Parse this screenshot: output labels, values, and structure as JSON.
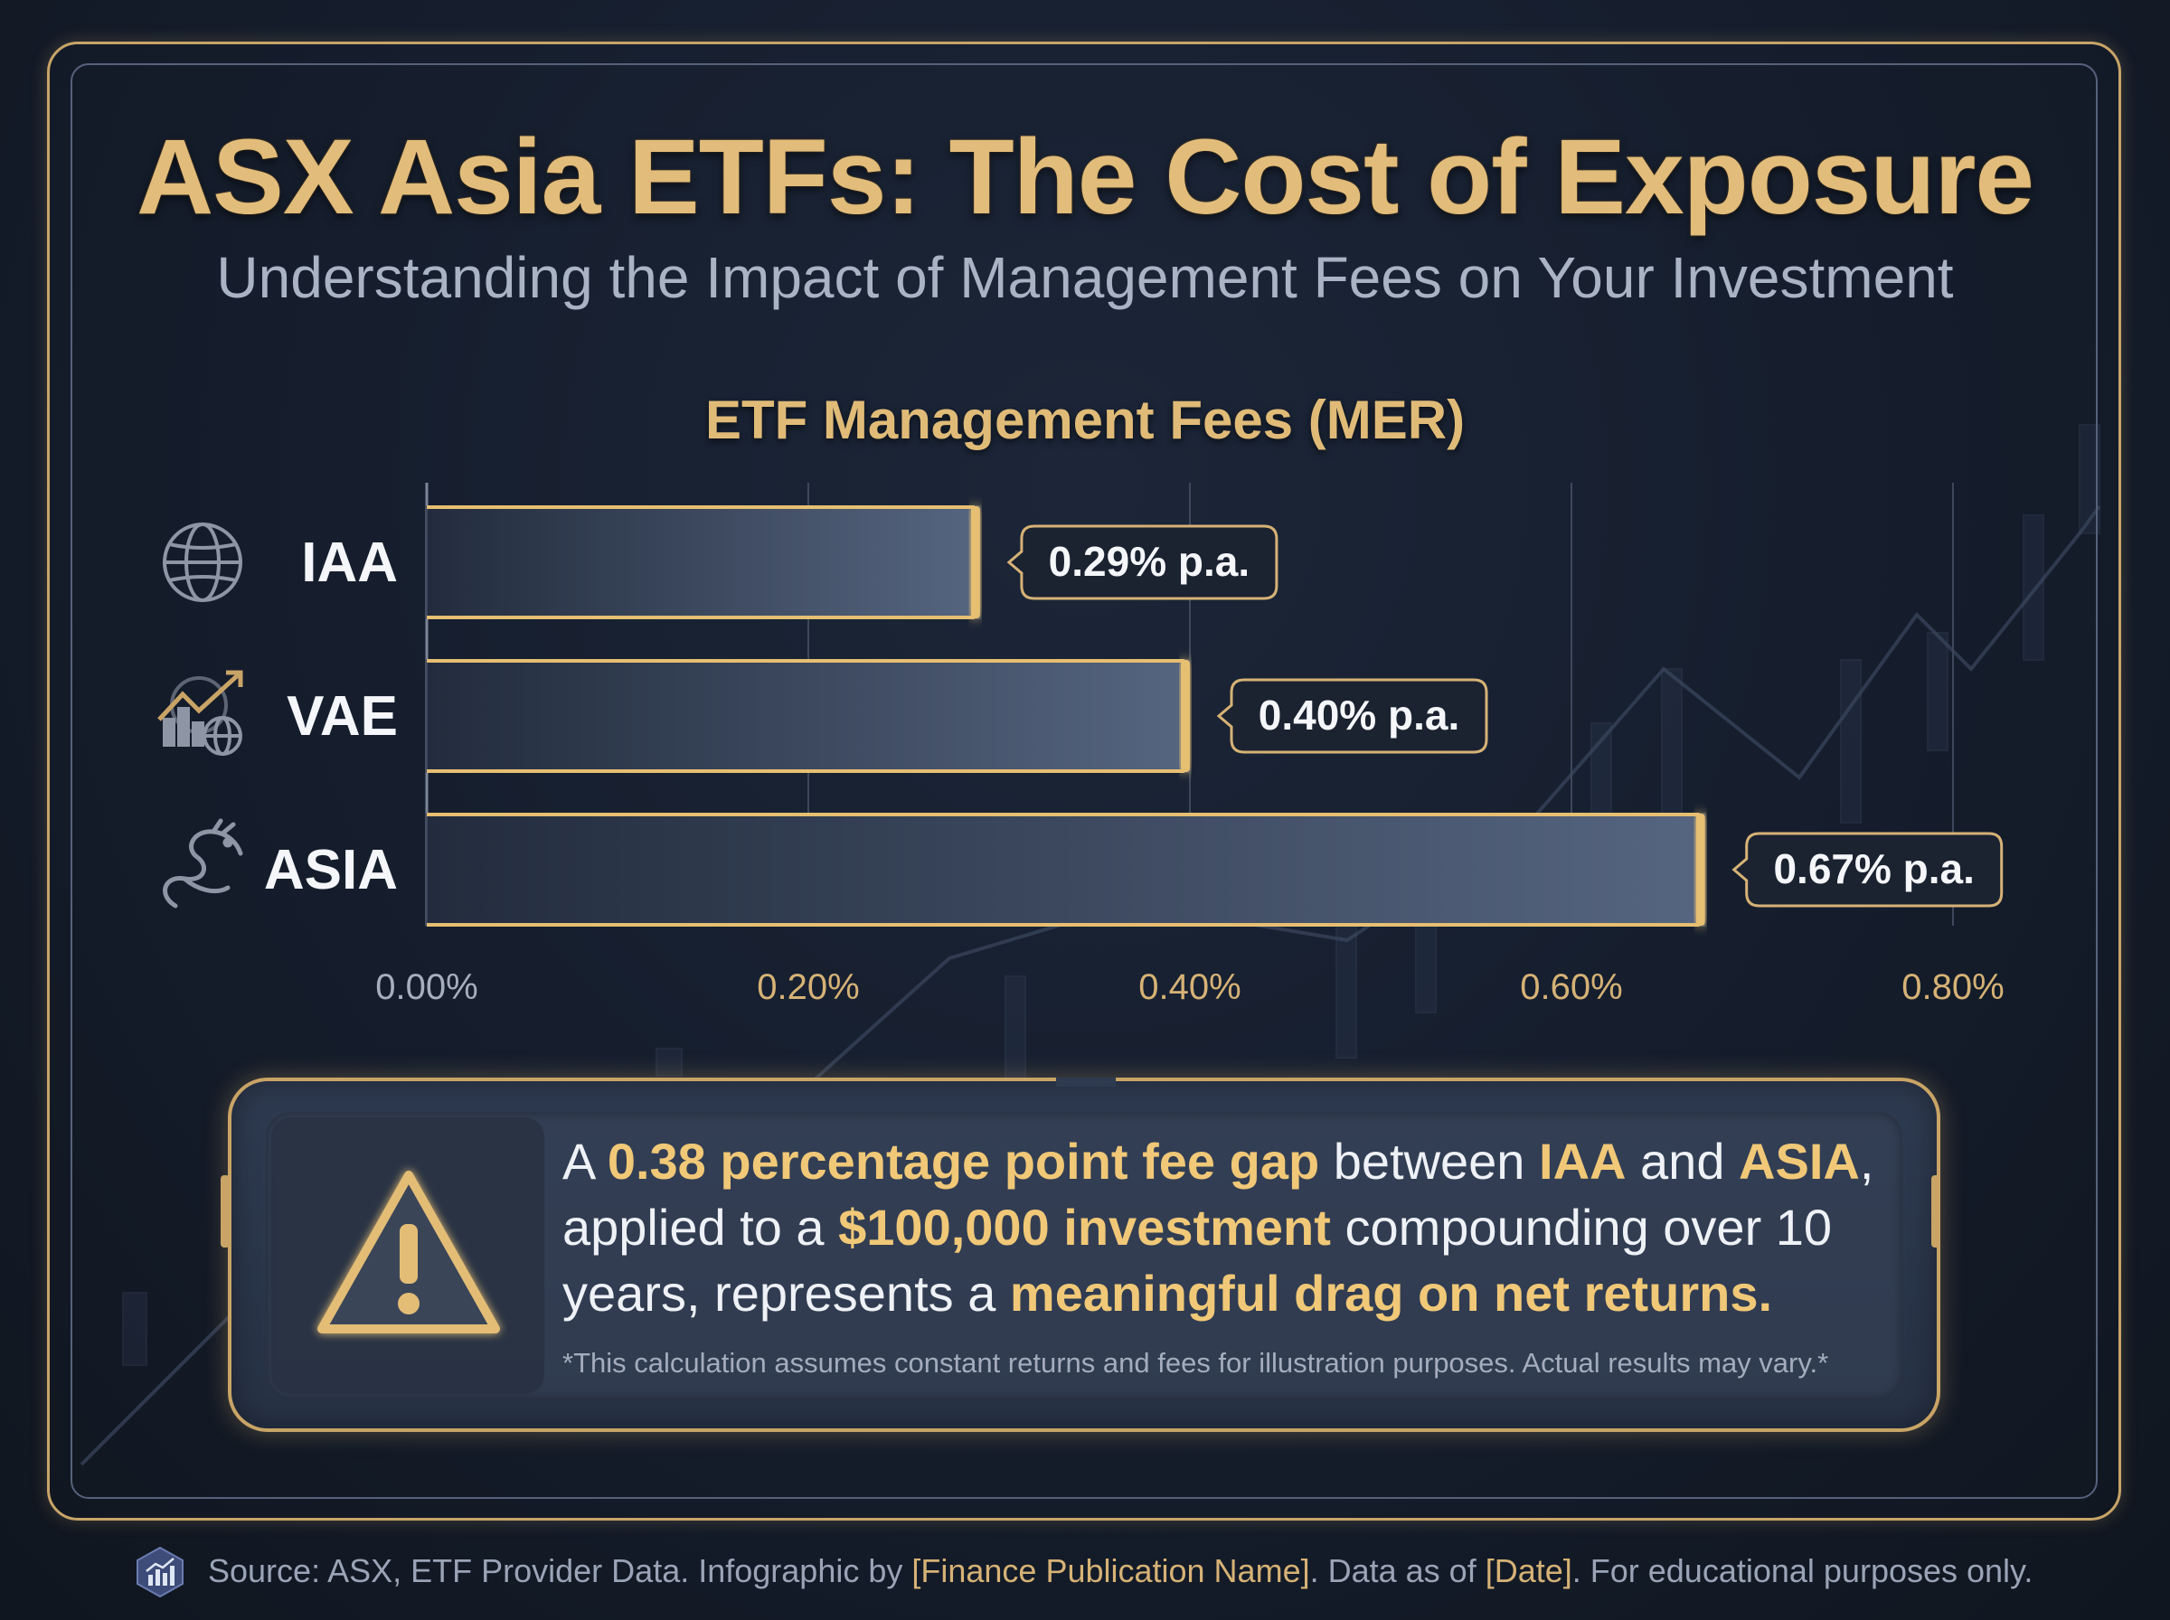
{
  "header": {
    "title": "ASX Asia ETFs: The Cost of Exposure",
    "subtitle": "Understanding the Impact of Management Fees on Your Investment"
  },
  "chart_data": {
    "type": "bar",
    "orientation": "horizontal",
    "title": "ETF Management Fees (MER)",
    "categories": [
      "IAA",
      "VAE",
      "ASIA"
    ],
    "category_icons": [
      "globe-icon",
      "growth-globe-icon",
      "dragon-icon"
    ],
    "values": [
      0.29,
      0.4,
      0.67
    ],
    "value_labels": [
      "0.29% p.a.",
      "0.40% p.a.",
      "0.67% p.a."
    ],
    "unit": "%",
    "xlim": [
      0,
      0.8
    ],
    "xticks": [
      0.0,
      0.2,
      0.4,
      0.6,
      0.8
    ],
    "xtick_labels": [
      "0.00%",
      "0.20%",
      "0.40%",
      "0.60%",
      "0.80%"
    ],
    "grid": true,
    "colors": {
      "bar_fill": "#4a5670",
      "bar_border": "#e6bf72",
      "label_bg": "#1b2230"
    }
  },
  "callout": {
    "text_a": "A ",
    "hl_1": "0.38 percentage point fee gap",
    "text_b": " between ",
    "hl_2": "IAA",
    "text_c": " and ",
    "hl_3": "ASIA",
    "text_d": ", applied to a ",
    "hl_4": "$100,000 investment",
    "text_e": " compounding over 10 years, represents a ",
    "hl_5": "meaningful drag on net returns.",
    "footnote": "*This calculation assumes constant returns and fees for illustration purposes. Actual results may vary.*",
    "icon": "warning-icon"
  },
  "footer": {
    "source_a": "Source: ASX, ETF Provider Data. Infographic by ",
    "publication": "[Finance Publication Name]",
    "source_b": ". Data as of ",
    "date": "[Date]",
    "source_c": ". For educational purposes only.",
    "icon": "bar-chart-icon"
  },
  "colors": {
    "accent": "#e2bc7a",
    "background": "#151d2c",
    "text": "#eef1f6"
  }
}
